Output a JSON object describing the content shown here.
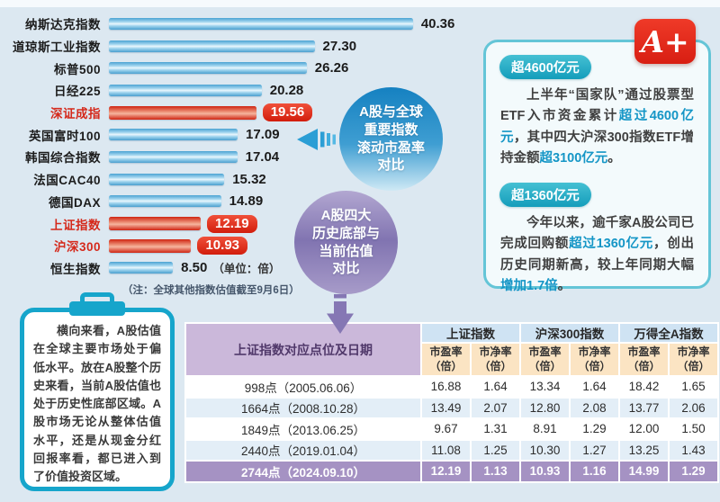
{
  "logo": {
    "text": "A+",
    "color": "#e2251b"
  },
  "bubbles": {
    "blue": {
      "lines": [
        "A股与全球",
        "重要指数",
        "滚动市盈率",
        "对比"
      ]
    },
    "purple": {
      "lines": [
        "A股四大",
        "历史底部与",
        "当前估值",
        "对比"
      ]
    }
  },
  "info_box": {
    "sections": [
      {
        "badge": "超4600亿元",
        "segments": [
          {
            "text": "上半年“国家队”通过股票型ETF入市资金累计"
          },
          {
            "text": "超过4600亿元",
            "highlight": true
          },
          {
            "text": "，其中四大沪深300指数ETF增持金额"
          },
          {
            "text": "超3100亿元",
            "highlight": true
          },
          {
            "text": "。"
          }
        ]
      },
      {
        "badge": "超1360亿元",
        "segments": [
          {
            "text": "今年以来，逾千家A股公司已完成回购额"
          },
          {
            "text": "超过1360亿元",
            "highlight": true
          },
          {
            "text": "，创出历史同期新高，较上年同期大幅"
          },
          {
            "text": "增加1.7倍",
            "highlight": true
          },
          {
            "text": "。"
          }
        ]
      }
    ]
  },
  "note_board": {
    "text": "横向来看，A股估值在全球主要市场处于偏低水平。放在A股整个历史来看，当前A股估值也处于历史性底部区域。A股市场无论从整体估值水平，还是从现金分红回报率看，都已进入到了价值投资区域。"
  },
  "chart_data": [
    {
      "type": "bar",
      "orientation": "horizontal",
      "title": "A股与全球重要指数滚动市盈率对比",
      "categories": [
        "纳斯达克指数",
        "道琼斯工业指数",
        "标普500",
        "日经225",
        "深证成指",
        "英国富时100",
        "韩国综合指数",
        "法国CAC40",
        "德国DAX",
        "上证指数",
        "沪深300",
        "恒生指数"
      ],
      "values": [
        40.36,
        27.3,
        26.26,
        20.28,
        19.56,
        17.09,
        17.04,
        15.32,
        14.89,
        12.19,
        10.93,
        8.5
      ],
      "highlighted_categories": [
        "深证成指",
        "上证指数",
        "沪深300"
      ],
      "unit_label": "（单位：倍）",
      "note": "（注：全球其他指数估值截至9月6日）",
      "xlim": [
        0,
        45
      ],
      "grid": false,
      "bar_color": "blue-gradient",
      "highlight_color": "red-gradient"
    },
    {
      "type": "table",
      "title": "A股四大历史底部与当前估值对比",
      "corner_header": "上证指数对应点位及日期",
      "column_groups": [
        {
          "label": "上证指数",
          "columns": [
            "市盈率（倍）",
            "市净率（倍）"
          ]
        },
        {
          "label": "沪深300指数",
          "columns": [
            "市盈率（倍）",
            "市净率（倍）"
          ]
        },
        {
          "label": "万得全A指数",
          "columns": [
            "市盈率（倍）",
            "市净率（倍）"
          ]
        }
      ],
      "rows": [
        {
          "label": "998点（2005.06.06）",
          "values": [
            16.88,
            1.64,
            13.34,
            1.64,
            18.42,
            1.65
          ],
          "highlight": false
        },
        {
          "label": "1664点（2008.10.28）",
          "values": [
            13.49,
            2.07,
            12.8,
            2.08,
            13.77,
            2.06
          ],
          "highlight": false
        },
        {
          "label": "1849点（2013.06.25）",
          "values": [
            9.67,
            1.31,
            8.91,
            1.29,
            12.0,
            1.5
          ],
          "highlight": false
        },
        {
          "label": "2440点（2019.01.04）",
          "values": [
            11.08,
            1.25,
            10.3,
            1.27,
            13.25,
            1.43
          ],
          "highlight": false
        },
        {
          "label": "2744点（2024.09.10）",
          "values": [
            12.19,
            1.13,
            10.93,
            1.16,
            14.99,
            1.29
          ],
          "highlight": true
        }
      ]
    }
  ]
}
